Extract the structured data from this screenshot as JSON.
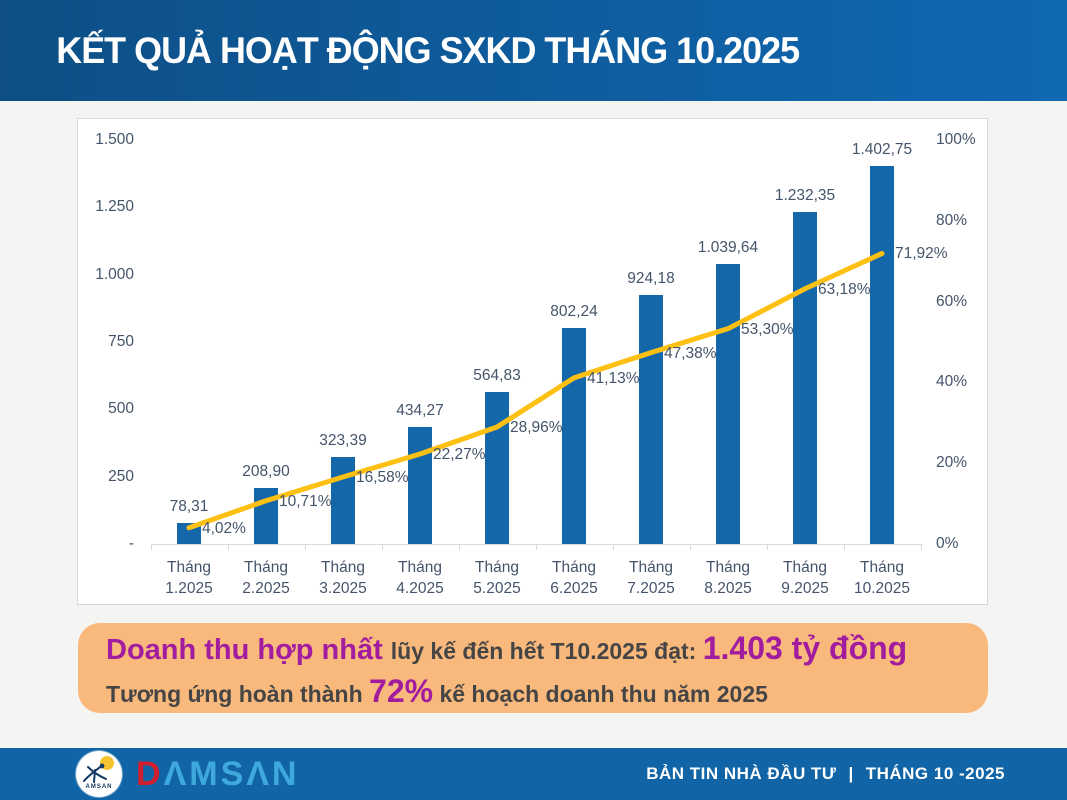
{
  "header": {
    "title": "KẾT QUẢ HOẠT ĐỘNG SXKD THÁNG 10.2025"
  },
  "chart_data": {
    "type": "bar+line",
    "categories": [
      "Tháng 1.2025",
      "Tháng 2.2025",
      "Tháng 3.2025",
      "Tháng 4.2025",
      "Tháng 5.2025",
      "Tháng 6.2025",
      "Tháng 7.2025",
      "Tháng 8.2025",
      "Tháng 9.2025",
      "Tháng 10.2025"
    ],
    "bar_series": {
      "values": [
        78.31,
        208.9,
        323.39,
        434.27,
        564.83,
        802.24,
        924.18,
        1039.64,
        1232.35,
        1402.75
      ],
      "labels": [
        "78,31",
        "208,90",
        "323,39",
        "434,27",
        "564,83",
        "802,24",
        "924,18",
        "1.039,64",
        "1.232,35",
        "1.402,75"
      ]
    },
    "line_series": {
      "values_pct": [
        4.02,
        10.71,
        16.58,
        22.27,
        28.96,
        41.13,
        47.38,
        53.3,
        63.18,
        71.92
      ],
      "labels": [
        "4,02%",
        "10,71%",
        "16,58%",
        "22,27%",
        "28,96%",
        "41,13%",
        "47,38%",
        "53,30%",
        "63,18%",
        "71,92%"
      ]
    },
    "y_left": {
      "ticks": [
        "1.500",
        "1.250",
        "1.000",
        "750",
        "500",
        "250",
        "-"
      ],
      "min": 0,
      "max": 1500
    },
    "y_right": {
      "ticks": [
        "100%",
        "80%",
        "60%",
        "40%",
        "20%",
        "0%"
      ],
      "min": 0,
      "max": 100
    },
    "grid": false,
    "legend": "none",
    "colors": {
      "bar": "#1467a8",
      "line": "#fdc013",
      "label": "#44546a"
    }
  },
  "callout": {
    "line1": [
      {
        "text": "Doanh thu hợp nhất ",
        "style": "purple"
      },
      {
        "text": "lũy kế đến hết T10.2025 đạt: ",
        "style": "gray"
      },
      {
        "text": "1.403 tỷ đồng",
        "style": "purple-big"
      }
    ],
    "line2": [
      {
        "text": "Tương ứng hoàn thành ",
        "style": "gray"
      },
      {
        "text": "72%",
        "style": "purple-big"
      },
      {
        "text": " kế hoạch doanh thu năm 2025",
        "style": "gray"
      }
    ]
  },
  "footer": {
    "logo_text": "AMSAN",
    "brand_d": "D",
    "brand_rest": "ΛMSΛN",
    "right_label": "BẢN TIN NHÀ ĐẦU TƯ",
    "right_sep": "|",
    "right_date": "THÁNG 10 -2025"
  }
}
